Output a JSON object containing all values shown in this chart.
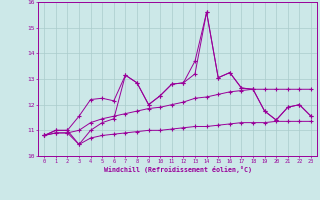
{
  "xlabel": "Windchill (Refroidissement éolien,°C)",
  "x": [
    0,
    1,
    2,
    3,
    4,
    5,
    6,
    7,
    8,
    9,
    10,
    11,
    12,
    13,
    14,
    15,
    16,
    17,
    18,
    19,
    20,
    21,
    22,
    23
  ],
  "line1": [
    10.8,
    10.9,
    10.9,
    10.45,
    10.7,
    10.8,
    10.85,
    10.9,
    10.95,
    11.0,
    11.0,
    11.05,
    11.1,
    11.15,
    11.15,
    11.2,
    11.25,
    11.3,
    11.3,
    11.3,
    11.35,
    11.35,
    11.35,
    11.35
  ],
  "line2": [
    10.8,
    10.9,
    10.9,
    11.0,
    11.3,
    11.45,
    11.55,
    11.65,
    11.75,
    11.85,
    11.9,
    12.0,
    12.1,
    12.25,
    12.3,
    12.4,
    12.5,
    12.55,
    12.6,
    12.6,
    12.6,
    12.6,
    12.6,
    12.6
  ],
  "line3": [
    10.8,
    11.0,
    11.0,
    11.55,
    12.2,
    12.25,
    12.15,
    13.15,
    12.85,
    12.0,
    12.35,
    12.8,
    12.85,
    13.2,
    15.6,
    13.05,
    13.25,
    12.65,
    12.6,
    11.75,
    11.4,
    11.9,
    12.0,
    11.55
  ],
  "line4": [
    10.8,
    11.0,
    11.0,
    10.45,
    11.0,
    11.3,
    11.45,
    13.15,
    12.85,
    12.0,
    12.35,
    12.8,
    12.85,
    13.7,
    15.6,
    13.05,
    13.25,
    12.65,
    12.6,
    11.75,
    11.4,
    11.9,
    12.0,
    11.55
  ],
  "bg_color": "#cce8e8",
  "line_color": "#990099",
  "grid_color": "#aacccc",
  "ylim": [
    10,
    16
  ],
  "yticks": [
    10,
    11,
    12,
    13,
    14,
    15,
    16
  ]
}
